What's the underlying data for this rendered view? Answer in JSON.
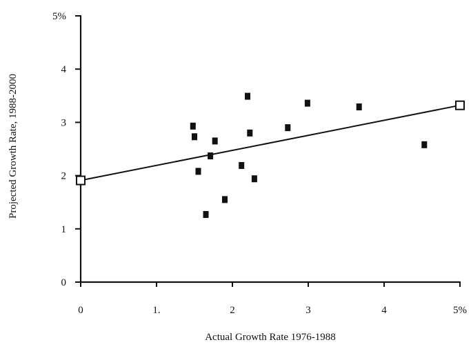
{
  "chart_data": {
    "type": "scatter",
    "title": "",
    "xlabel": "Actual Growth Rate 1976-1988",
    "ylabel": "Projected Growth Rate, 1988-2000",
    "xlim": [
      0,
      5
    ],
    "ylim": [
      0,
      5
    ],
    "x_ticks": [
      {
        "value": 0,
        "label": "0"
      },
      {
        "value": 1,
        "label": "1."
      },
      {
        "value": 2,
        "label": "2"
      },
      {
        "value": 3,
        "label": "3"
      },
      {
        "value": 4,
        "label": "4"
      },
      {
        "value": 5,
        "label": "5%"
      }
    ],
    "y_ticks": [
      {
        "value": 0,
        "label": "0"
      },
      {
        "value": 1,
        "label": "1"
      },
      {
        "value": 2,
        "label": "2"
      },
      {
        "value": 3,
        "label": "3"
      },
      {
        "value": 4,
        "label": "4"
      },
      {
        "value": 5,
        "label": "5%"
      }
    ],
    "grid": false,
    "legend": "none",
    "points": [
      {
        "x": 1.48,
        "y": 2.93
      },
      {
        "x": 1.5,
        "y": 2.73
      },
      {
        "x": 1.55,
        "y": 2.08
      },
      {
        "x": 1.65,
        "y": 1.27
      },
      {
        "x": 1.71,
        "y": 2.37
      },
      {
        "x": 1.77,
        "y": 2.65
      },
      {
        "x": 1.9,
        "y": 1.55
      },
      {
        "x": 2.12,
        "y": 2.19
      },
      {
        "x": 2.2,
        "y": 3.49
      },
      {
        "x": 2.23,
        "y": 2.8
      },
      {
        "x": 2.29,
        "y": 1.94
      },
      {
        "x": 2.73,
        "y": 2.9
      },
      {
        "x": 2.99,
        "y": 3.36
      },
      {
        "x": 3.67,
        "y": 3.29
      },
      {
        "x": 4.53,
        "y": 2.58
      }
    ],
    "fit_line": {
      "start": {
        "x": 0,
        "y": 1.91
      },
      "end": {
        "x": 5,
        "y": 3.32
      }
    },
    "colors": {
      "ink": "#111111",
      "background": "#ffffff"
    }
  }
}
